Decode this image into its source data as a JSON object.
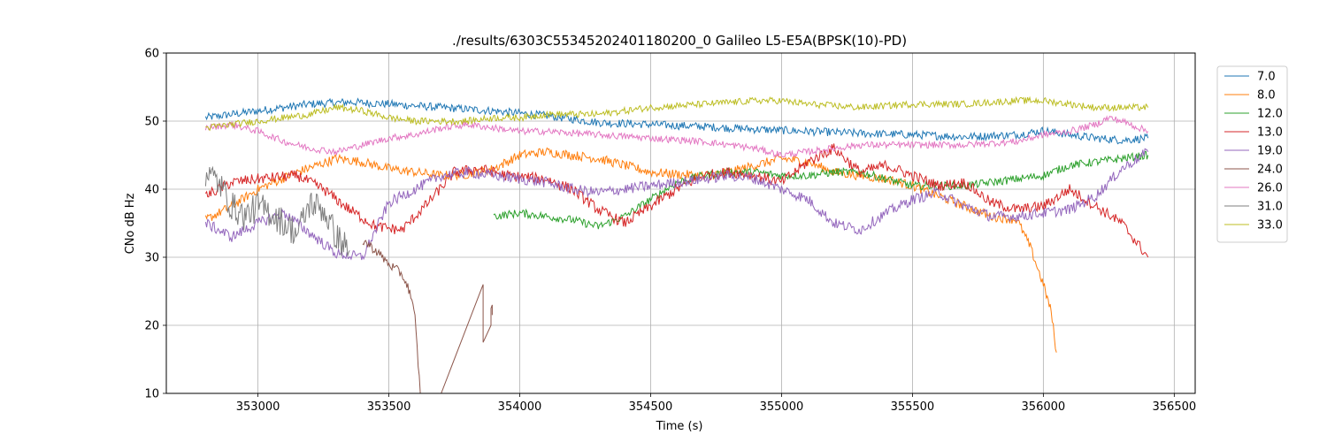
{
  "chart_data": {
    "type": "line",
    "title": "./results/6303C55345202401180200_0 Galileo L5-E5A(BPSK(10)-PD)",
    "xlabel": "Time (s)",
    "ylabel": "CNo dB Hz",
    "xlim": [
      352650,
      356580
    ],
    "ylim": [
      10,
      60
    ],
    "xticks": [
      353000,
      353500,
      354000,
      354500,
      355000,
      355500,
      356000,
      356500
    ],
    "yticks": [
      10,
      20,
      30,
      40,
      50,
      60
    ],
    "grid": true,
    "legend_position": "upper-right-outside",
    "series": [
      {
        "name": "7.0",
        "color": "#1f77b4",
        "noise": 0.6,
        "x": [
          352800,
          353000,
          353200,
          353350,
          353500,
          353700,
          353900,
          354100,
          354300,
          354500,
          354700,
          354900,
          355100,
          355300,
          355500,
          355700,
          355900,
          356000,
          356100,
          356200,
          356300,
          356400
        ],
        "y": [
          50.5,
          51.5,
          52.5,
          52.8,
          52.5,
          52.0,
          51.5,
          50.8,
          49.8,
          49.5,
          49.2,
          48.8,
          48.5,
          48.2,
          48.0,
          47.7,
          48.0,
          48.6,
          48.0,
          47.5,
          47.2,
          47.5
        ]
      },
      {
        "name": "8.0",
        "color": "#ff7f0e",
        "noise": 0.7,
        "x": [
          352800,
          352900,
          353000,
          353150,
          353300,
          353400,
          353500,
          353600,
          353700,
          353800,
          353900,
          354000,
          354100,
          354200,
          354300,
          354400,
          354500,
          354600,
          354700,
          354800,
          354900,
          355000,
          355100,
          355200,
          355300,
          355400,
          355500,
          355600,
          355700,
          355800,
          355900,
          355950,
          356000,
          356030,
          356050
        ],
        "y": [
          35.5,
          37.5,
          40.0,
          42.5,
          44.5,
          44.0,
          43.0,
          42.5,
          42.0,
          42.2,
          43.0,
          45.0,
          45.5,
          45.0,
          44.5,
          43.5,
          42.5,
          42.2,
          42.0,
          42.5,
          43.5,
          44.5,
          44.0,
          42.5,
          42.0,
          41.5,
          40.5,
          39.0,
          37.5,
          36.0,
          35.5,
          31.5,
          26.0,
          22.0,
          16.0
        ]
      },
      {
        "name": "12.0",
        "color": "#2ca02c",
        "noise": 0.6,
        "x": [
          353900,
          354000,
          354100,
          354200,
          354300,
          354400,
          354500,
          354600,
          354700,
          354800,
          354900,
          355000,
          355100,
          355200,
          355300,
          355400,
          355500,
          355600,
          355700,
          355800,
          355900,
          356000,
          356100,
          356200,
          356300,
          356400
        ],
        "y": [
          36.0,
          36.5,
          36.0,
          35.5,
          34.5,
          36.0,
          38.5,
          41.0,
          42.0,
          42.5,
          42.5,
          42.0,
          42.0,
          42.5,
          42.5,
          41.5,
          40.5,
          40.5,
          40.5,
          41.0,
          41.5,
          42.0,
          43.5,
          44.0,
          44.5,
          45.0
        ]
      },
      {
        "name": "13.0",
        "color": "#d62728",
        "noise": 0.8,
        "x": [
          352800,
          352900,
          353000,
          353150,
          353250,
          353350,
          353450,
          353550,
          353650,
          353750,
          353850,
          353950,
          354100,
          354200,
          354300,
          354400,
          354500,
          354600,
          354700,
          354800,
          354900,
          355000,
          355100,
          355200,
          355300,
          355400,
          355500,
          355600,
          355700,
          355800,
          355900,
          356000,
          356100,
          356200,
          356300,
          356400
        ],
        "y": [
          39.0,
          41.0,
          41.5,
          42.0,
          40.0,
          37.0,
          34.5,
          34.0,
          38.0,
          42.5,
          43.0,
          42.0,
          41.5,
          40.0,
          37.0,
          35.0,
          37.5,
          40.0,
          42.0,
          42.5,
          42.0,
          41.0,
          44.0,
          46.0,
          42.5,
          43.5,
          42.0,
          40.5,
          41.0,
          38.0,
          37.0,
          37.5,
          40.0,
          37.5,
          35.0,
          30.0
        ]
      },
      {
        "name": "19.0",
        "color": "#9467bd",
        "noise": 0.8,
        "x": [
          352800,
          352900,
          353000,
          353100,
          353200,
          353300,
          353400,
          353500,
          353600,
          353700,
          353800,
          353900,
          354000,
          354100,
          354200,
          354300,
          354400,
          354500,
          354600,
          354700,
          354800,
          354900,
          355000,
          355100,
          355200,
          355300,
          355400,
          355500,
          355600,
          355700,
          355800,
          355900,
          356000,
          356100,
          356200,
          356300,
          356400
        ],
        "y": [
          35.0,
          33.0,
          35.0,
          36.5,
          33.5,
          30.5,
          30.0,
          38.0,
          40.0,
          42.0,
          42.5,
          42.0,
          41.5,
          41.0,
          40.0,
          39.5,
          40.0,
          40.5,
          41.0,
          41.5,
          42.0,
          41.5,
          40.0,
          38.5,
          35.0,
          34.0,
          36.5,
          38.5,
          39.5,
          37.5,
          36.0,
          36.0,
          36.5,
          37.0,
          39.0,
          43.0,
          45.5
        ]
      },
      {
        "name": "24.0",
        "color": "#8c564b",
        "noise": 0.7,
        "x": [
          353400,
          353450,
          353500,
          353550,
          353580,
          353600,
          353620
        ],
        "y": [
          32.5,
          31.0,
          29.0,
          27.5,
          25.0,
          21.0,
          10.0
        ]
      },
      {
        "name": "26.0",
        "color": "#e377c2",
        "noise": 0.5,
        "x": [
          352800,
          352900,
          353000,
          353100,
          353200,
          353300,
          353400,
          353500,
          353600,
          353700,
          353800,
          353900,
          354000,
          354100,
          354300,
          354500,
          354700,
          354900,
          355000,
          355100,
          355300,
          355500,
          355700,
          355900,
          356000,
          356100,
          356200,
          356250,
          356300,
          356400
        ],
        "y": [
          49.0,
          49.5,
          48.5,
          47.0,
          46.0,
          45.5,
          46.5,
          47.5,
          48.0,
          49.0,
          49.5,
          49.0,
          48.5,
          48.5,
          48.0,
          47.5,
          47.0,
          46.0,
          45.0,
          45.5,
          46.5,
          46.5,
          46.5,
          47.0,
          48.0,
          48.5,
          49.5,
          50.5,
          50.0,
          48.5
        ]
      },
      {
        "name": "31.0",
        "color": "#7f7f7f",
        "noise": 2.2,
        "x": [
          352800,
          352850,
          352900,
          352950,
          353000,
          353050,
          353100,
          353150,
          353200,
          353250,
          353300,
          353350
        ],
        "y": [
          42.5,
          41.0,
          37.5,
          36.0,
          37.5,
          36.5,
          35.0,
          33.5,
          38.0,
          37.0,
          33.0,
          31.0
        ]
      },
      {
        "name": "33.0",
        "color": "#bcbd22",
        "noise": 0.5,
        "x": [
          352800,
          352900,
          353000,
          353100,
          353200,
          353300,
          353400,
          353500,
          353600,
          353700,
          353800,
          353900,
          354000,
          354100,
          354300,
          354500,
          354700,
          354900,
          355000,
          355100,
          355300,
          355500,
          355700,
          355900,
          356000,
          356100,
          356200,
          356300,
          356400
        ],
        "y": [
          49.0,
          49.5,
          50.0,
          50.5,
          51.0,
          52.0,
          51.5,
          50.5,
          50.0,
          50.0,
          50.0,
          50.5,
          50.5,
          51.0,
          51.0,
          52.0,
          52.5,
          53.0,
          53.0,
          52.5,
          52.0,
          52.5,
          52.5,
          53.0,
          53.0,
          52.5,
          52.0,
          52.0,
          52.0
        ]
      }
    ],
    "extra_segments": [
      {
        "series": "24.0",
        "color": "#8c564b",
        "x": [
          353700,
          353860,
          353860,
          353890,
          353890,
          353895,
          353895
        ],
        "y": [
          10.0,
          26.0,
          17.5,
          20.0,
          22.5,
          23.0,
          21.5
        ]
      }
    ]
  }
}
